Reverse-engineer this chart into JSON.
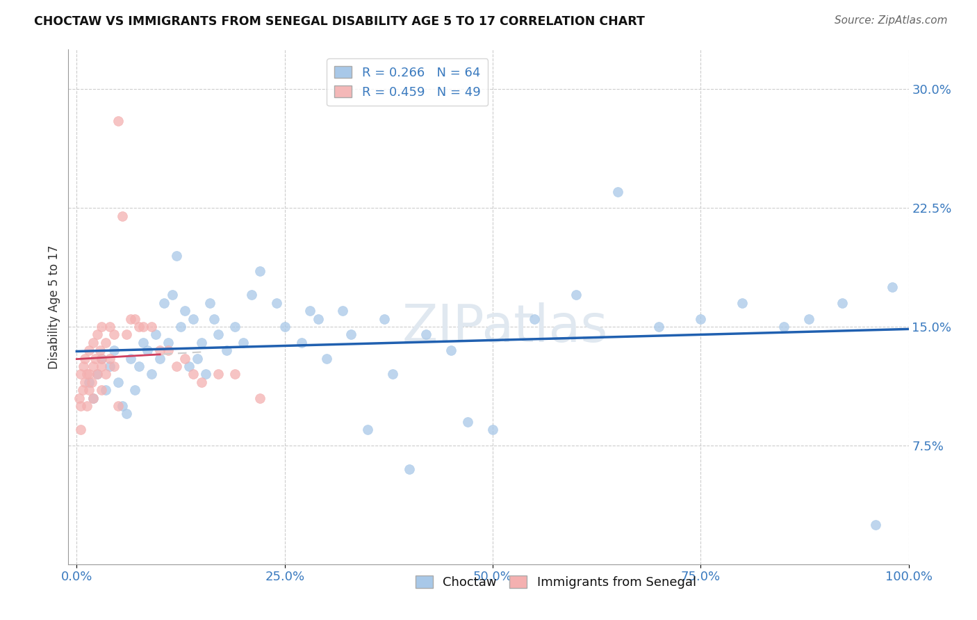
{
  "title": "CHOCTAW VS IMMIGRANTS FROM SENEGAL DISABILITY AGE 5 TO 17 CORRELATION CHART",
  "source": "Source: ZipAtlas.com",
  "ylabel": "Disability Age 5 to 17",
  "x_tick_labels": [
    "0.0%",
    "25.0%",
    "50.0%",
    "75.0%",
    "100.0%"
  ],
  "x_tick_values": [
    0.0,
    25.0,
    50.0,
    75.0,
    100.0
  ],
  "y_tick_labels": [
    "7.5%",
    "15.0%",
    "22.5%",
    "30.0%"
  ],
  "y_tick_values": [
    7.5,
    15.0,
    22.5,
    30.0
  ],
  "xlim": [
    -1.0,
    100.0
  ],
  "ylim": [
    0.0,
    32.5
  ],
  "legend_1_label": "R = 0.266   N = 64",
  "legend_2_label": "R = 0.459   N = 49",
  "legend_1_color": "#a8c8e8",
  "legend_2_color": "#f4b8b8",
  "choctaw_color": "#a8c8e8",
  "senegal_color": "#f4b0b0",
  "trendline_choctaw_color": "#2060b0",
  "trendline_senegal_color": "#d04060",
  "watermark": "ZIPatlas",
  "choctaw_x": [
    1.5,
    2.0,
    2.5,
    3.0,
    3.5,
    4.0,
    4.5,
    5.0,
    5.5,
    6.0,
    6.5,
    7.0,
    7.5,
    8.0,
    8.5,
    9.0,
    9.5,
    10.0,
    10.5,
    11.0,
    11.5,
    12.0,
    12.5,
    13.0,
    13.5,
    14.0,
    14.5,
    15.0,
    15.5,
    16.0,
    16.5,
    17.0,
    18.0,
    19.0,
    20.0,
    21.0,
    22.0,
    24.0,
    25.0,
    27.0,
    28.0,
    29.0,
    30.0,
    32.0,
    33.0,
    35.0,
    37.0,
    38.0,
    40.0,
    42.0,
    45.0,
    47.0,
    50.0,
    55.0,
    60.0,
    65.0,
    70.0,
    75.0,
    80.0,
    85.0,
    88.0,
    92.0,
    96.0,
    98.0
  ],
  "choctaw_y": [
    11.5,
    10.5,
    12.0,
    13.0,
    11.0,
    12.5,
    13.5,
    11.5,
    10.0,
    9.5,
    13.0,
    11.0,
    12.5,
    14.0,
    13.5,
    12.0,
    14.5,
    13.0,
    16.5,
    14.0,
    17.0,
    19.5,
    15.0,
    16.0,
    12.5,
    15.5,
    13.0,
    14.0,
    12.0,
    16.5,
    15.5,
    14.5,
    13.5,
    15.0,
    14.0,
    17.0,
    18.5,
    16.5,
    15.0,
    14.0,
    16.0,
    15.5,
    13.0,
    16.0,
    14.5,
    8.5,
    15.5,
    12.0,
    6.0,
    14.5,
    13.5,
    9.0,
    8.5,
    15.5,
    17.0,
    23.5,
    15.0,
    15.5,
    16.5,
    15.0,
    15.5,
    16.5,
    2.5,
    17.5
  ],
  "senegal_x": [
    0.3,
    0.5,
    0.5,
    0.5,
    0.7,
    0.8,
    1.0,
    1.0,
    1.2,
    1.2,
    1.5,
    1.5,
    1.5,
    1.8,
    2.0,
    2.0,
    2.0,
    2.2,
    2.5,
    2.5,
    2.8,
    3.0,
    3.0,
    3.0,
    3.0,
    3.5,
    3.5,
    4.0,
    4.0,
    4.5,
    4.5,
    5.0,
    5.0,
    5.5,
    6.0,
    6.5,
    7.0,
    7.5,
    8.0,
    9.0,
    10.0,
    11.0,
    12.0,
    13.0,
    14.0,
    15.0,
    17.0,
    19.0,
    22.0
  ],
  "senegal_y": [
    10.5,
    12.0,
    10.0,
    8.5,
    11.0,
    12.5,
    13.0,
    11.5,
    10.0,
    12.0,
    13.5,
    11.0,
    12.0,
    11.5,
    14.0,
    12.5,
    10.5,
    13.0,
    14.5,
    12.0,
    13.5,
    15.0,
    12.5,
    11.0,
    13.0,
    14.0,
    12.0,
    15.0,
    13.0,
    14.5,
    12.5,
    28.0,
    10.0,
    22.0,
    14.5,
    15.5,
    15.5,
    15.0,
    15.0,
    15.0,
    13.5,
    13.5,
    12.5,
    13.0,
    12.0,
    11.5,
    12.0,
    12.0,
    10.5
  ]
}
